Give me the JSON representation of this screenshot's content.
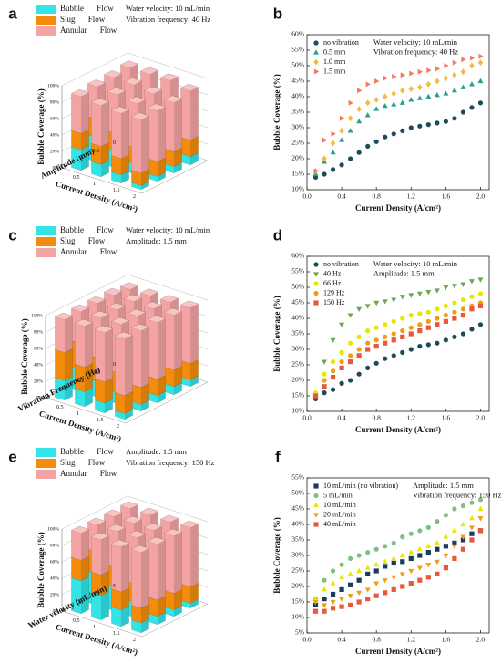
{
  "chart_data": [
    {
      "type": "bar3d",
      "label": "a",
      "annotations": [
        "Water velocity: 10 mL/min",
        "Vibration frequency: 40 Hz"
      ],
      "categories": [
        "0.5",
        "1",
        "1.5",
        "2"
      ],
      "depth_categories": [
        "0",
        "0.5",
        "1",
        "1.5"
      ],
      "xlabel": "Current Density (A/cm²)",
      "depth_label": "Amplitude (mm)",
      "zlabel": "Bubble Coverage (%)",
      "zlim": [
        0,
        100
      ],
      "zticks": [
        {
          "value": 0,
          "label": "0%"
        },
        {
          "value": 20,
          "label": "20%"
        },
        {
          "value": 40,
          "label": "40%"
        },
        {
          "value": 60,
          "label": "60%"
        },
        {
          "value": 80,
          "label": "80%"
        },
        {
          "value": 100,
          "label": "100%"
        }
      ],
      "series": [
        {
          "name": "Bubble Flow",
          "color": "#33e3e6",
          "values": [
            [
              40,
              30,
              20,
              10
            ],
            [
              35,
              25,
              15,
              8
            ],
            [
              30,
              20,
              12,
              6
            ],
            [
              25,
              15,
              10,
              5
            ]
          ]
        },
        {
          "name": "Slug Flow",
          "color": "#f28c0a",
          "values": [
            [
              20,
              20,
              25,
              20
            ],
            [
              20,
              22,
              22,
              18
            ],
            [
              22,
              22,
              20,
              18
            ],
            [
              20,
              22,
              20,
              15
            ]
          ]
        },
        {
          "name": "Annular Flow",
          "color": "#f4a3a3",
          "values": [
            [
              35,
              45,
              50,
              60
            ],
            [
              38,
              45,
              52,
              60
            ],
            [
              40,
              48,
              55,
              62
            ],
            [
              45,
              50,
              55,
              65
            ]
          ]
        }
      ]
    },
    {
      "type": "scatter",
      "label": "b",
      "legend": "upper left",
      "annotations": [
        "Water velocity: 10 mL/min",
        "Vibration frequency: 40 Hz"
      ],
      "xlabel": "Current Density (A/cm²)",
      "ylabel": "Bubble Coverage (%)",
      "x": [
        0.1,
        0.2,
        0.3,
        0.4,
        0.5,
        0.6,
        0.7,
        0.8,
        0.9,
        1.0,
        1.1,
        1.2,
        1.3,
        1.4,
        1.5,
        1.6,
        1.7,
        1.8,
        1.9,
        2.0
      ],
      "xlim": [
        0,
        2.1
      ],
      "xticks": [
        {
          "value": 0,
          "label": "0.0"
        },
        0.4,
        0.8,
        1.2,
        1.6,
        {
          "value": 2,
          "label": "2.0"
        }
      ],
      "ylim": [
        10,
        60
      ],
      "yticks": [
        {
          "value": 10,
          "label": "10%"
        },
        {
          "value": 15,
          "label": "15%"
        },
        {
          "value": 20,
          "label": "20%"
        },
        {
          "value": 25,
          "label": "25%"
        },
        {
          "value": 30,
          "label": "30%"
        },
        {
          "value": 35,
          "label": "35%"
        },
        {
          "value": 40,
          "label": "40%"
        },
        {
          "value": 45,
          "label": "45%"
        },
        {
          "value": 50,
          "label": "50%"
        },
        {
          "value": 55,
          "label": "55%"
        },
        {
          "value": 60,
          "label": "60%"
        }
      ],
      "series": [
        {
          "name": "no vibration",
          "color": "#1d4b5c",
          "marker": "circle",
          "values": [
            14,
            15,
            16.5,
            18,
            20,
            22,
            24,
            25.5,
            27,
            28,
            29,
            30,
            30.5,
            31,
            31.5,
            32,
            33,
            35,
            36.5,
            38
          ]
        },
        {
          "name": "0.5 mm",
          "color": "#2a9d8f",
          "marker": "triangle-up",
          "values": [
            15,
            19,
            22,
            26,
            29,
            32,
            34,
            36,
            37,
            37.5,
            38,
            39,
            39.5,
            40,
            40.5,
            41,
            42,
            43,
            44,
            45
          ]
        },
        {
          "name": "1.0 mm",
          "color": "#f4b942",
          "marker": "diamond",
          "values": [
            16,
            20,
            25,
            29,
            33,
            36,
            38,
            39,
            40,
            41,
            42,
            42.5,
            43,
            44,
            45,
            46,
            47,
            48,
            50,
            51
          ]
        },
        {
          "name": "1.5 mm",
          "color": "#f27a5e",
          "marker": "triangle-right",
          "values": [
            16,
            26,
            28,
            33,
            38,
            42,
            44,
            45,
            46,
            46.5,
            47,
            47.5,
            48,
            48.5,
            49,
            50,
            51,
            52,
            52.5,
            53
          ]
        }
      ]
    },
    {
      "type": "bar3d",
      "label": "c",
      "annotations": [
        "Water velocity: 10 mL/min",
        "Amplitude: 1.5 mm"
      ],
      "categories": [
        "0.5",
        "1",
        "1.5",
        "2"
      ],
      "depth_categories": [
        "0",
        "40",
        "66",
        "129",
        "150"
      ],
      "xlabel": "Current Density (A/cm²)",
      "depth_label": "Vibration Frequency (Hz)",
      "zlabel": "Bubble Coverage (%)",
      "zlim": [
        0,
        100
      ],
      "zticks": [
        {
          "value": 0,
          "label": "0%"
        },
        {
          "value": 20,
          "label": "20%"
        },
        {
          "value": 40,
          "label": "40%"
        },
        {
          "value": 60,
          "label": "60%"
        },
        {
          "value": 80,
          "label": "80%"
        },
        {
          "value": 100,
          "label": "100%"
        }
      ],
      "series": [
        {
          "name": "Bubble Flow",
          "color": "#33e3e6",
          "values": [
            [
              25,
              18,
              12,
              8
            ],
            [
              30,
              22,
              15,
              10
            ],
            [
              28,
              20,
              14,
              9
            ],
            [
              26,
              19,
              13,
              8
            ],
            [
              24,
              18,
              12,
              7
            ]
          ]
        },
        {
          "name": "Slug Flow",
          "color": "#f28c0a",
          "values": [
            [
              35,
              30,
              25,
              20
            ],
            [
              30,
              28,
              24,
              20
            ],
            [
              32,
              28,
              24,
              20
            ],
            [
              33,
              29,
              25,
              21
            ],
            [
              34,
              30,
              26,
              22
            ]
          ]
        },
        {
          "name": "Annular Flow",
          "color": "#f4a3a3",
          "values": [
            [
              35,
              47,
              58,
              68
            ],
            [
              38,
              48,
              58,
              67
            ],
            [
              38,
              50,
              60,
              69
            ],
            [
              39,
              50,
              60,
              69
            ],
            [
              40,
              50,
              60,
              69
            ]
          ]
        }
      ]
    },
    {
      "type": "scatter",
      "label": "d",
      "legend": "upper left",
      "annotations": [
        "Water velocity: 10 mL/min",
        "Amplitude: 1.5 mm"
      ],
      "xlabel": "Current Density (A/cm²)",
      "ylabel": "Bubble Coverage (%)",
      "x": [
        0.1,
        0.2,
        0.3,
        0.4,
        0.5,
        0.6,
        0.7,
        0.8,
        0.9,
        1.0,
        1.1,
        1.2,
        1.3,
        1.4,
        1.5,
        1.6,
        1.7,
        1.8,
        1.9,
        2.0
      ],
      "xlim": [
        0,
        2.1
      ],
      "xticks": [
        {
          "value": 0,
          "label": "0.0"
        },
        0.4,
        0.8,
        1.2,
        1.6,
        {
          "value": 2,
          "label": "2.0"
        }
      ],
      "ylim": [
        10,
        60
      ],
      "yticks": [
        {
          "value": 10,
          "label": "10%"
        },
        {
          "value": 15,
          "label": "15%"
        },
        {
          "value": 20,
          "label": "20%"
        },
        {
          "value": 25,
          "label": "25%"
        },
        {
          "value": 30,
          "label": "30%"
        },
        {
          "value": 35,
          "label": "35%"
        },
        {
          "value": 40,
          "label": "40%"
        },
        {
          "value": 45,
          "label": "45%"
        },
        {
          "value": 50,
          "label": "50%"
        },
        {
          "value": 55,
          "label": "55%"
        },
        {
          "value": 60,
          "label": "60%"
        }
      ],
      "series": [
        {
          "name": "no vibration",
          "color": "#1d4b5c",
          "marker": "circle",
          "values": [
            14,
            16,
            17,
            19,
            20,
            22,
            24,
            25.5,
            27,
            28,
            29,
            30,
            31,
            31.5,
            32,
            33,
            34,
            35,
            36.5,
            38
          ]
        },
        {
          "name": "40 Hz",
          "color": "#6aa84f",
          "marker": "triangle-down",
          "values": [
            15,
            26,
            33,
            38,
            41,
            43,
            44,
            45,
            45.5,
            46,
            47,
            47.5,
            48,
            48.5,
            49,
            50,
            50.5,
            51,
            52,
            52.5
          ]
        },
        {
          "name": "66 Hz",
          "color": "#e6e600",
          "marker": "circle",
          "values": [
            16,
            22,
            26,
            29,
            32,
            34,
            36,
            37,
            38,
            39,
            40,
            41,
            41.5,
            42,
            43,
            44,
            45,
            46,
            47,
            48
          ]
        },
        {
          "name": "129 Hz",
          "color": "#f39c12",
          "marker": "circle",
          "values": [
            15,
            20,
            23,
            26,
            28,
            30,
            32,
            33,
            34,
            35,
            36,
            37,
            38,
            39,
            40,
            41,
            42,
            43,
            44,
            45
          ]
        },
        {
          "name": "150 Hz",
          "color": "#e8593c",
          "marker": "square",
          "values": [
            15,
            18,
            21,
            24,
            26,
            28,
            30,
            31,
            32,
            33,
            34,
            35,
            36,
            37,
            38,
            39,
            40,
            41,
            43,
            44
          ]
        }
      ]
    },
    {
      "type": "bar3d",
      "label": "e",
      "annotations": [
        "Amplitude: 1.5 mm",
        "Vibration frequency: 150 Hz"
      ],
      "categories": [
        "0.5",
        "1",
        "1.5",
        "2"
      ],
      "depth_categories": [
        "5",
        "10",
        "20",
        "40"
      ],
      "xlabel": "Current Density (A/cm²)",
      "depth_label": "Water velocity (mL/min)",
      "zlabel": "Bubble Coverage (%)",
      "zlim": [
        0,
        100
      ],
      "zticks": [
        {
          "value": 0,
          "label": "0%"
        },
        {
          "value": 20,
          "label": "20%"
        },
        {
          "value": 40,
          "label": "40%"
        },
        {
          "value": 60,
          "label": "60%"
        },
        {
          "value": 80,
          "label": "80%"
        },
        {
          "value": 100,
          "label": "100%"
        }
      ],
      "series": [
        {
          "name": "Bubble Flow",
          "color": "#33e3e6",
          "values": [
            [
              30,
              20,
              12,
              6
            ],
            [
              35,
              25,
              15,
              8
            ],
            [
              38,
              28,
              18,
              10
            ],
            [
              40,
              30,
              20,
              12
            ]
          ]
        },
        {
          "name": "Slug Flow",
          "color": "#f28c0a",
          "values": [
            [
              30,
              28,
              25,
              20
            ],
            [
              28,
              26,
              24,
              20
            ],
            [
              27,
              25,
              23,
              20
            ],
            [
              25,
              25,
              22,
              18
            ]
          ]
        },
        {
          "name": "Annular Flow",
          "color": "#f4a3a3",
          "values": [
            [
              38,
              50,
              60,
              72
            ],
            [
              35,
              47,
              58,
              70
            ],
            [
              33,
              45,
              57,
              68
            ],
            [
              33,
              43,
              55,
              68
            ]
          ]
        }
      ]
    },
    {
      "type": "scatter",
      "label": "f",
      "legend": "upper left",
      "annotations": [
        "Amplitude: 1.5 mm",
        "Vibration frequency: 150 Hz"
      ],
      "xlabel": "Current Density (A/cm²)",
      "ylabel": "Bubble Coverage (%)",
      "x": [
        0.1,
        0.2,
        0.3,
        0.4,
        0.5,
        0.6,
        0.7,
        0.8,
        0.9,
        1.0,
        1.1,
        1.2,
        1.3,
        1.4,
        1.5,
        1.6,
        1.7,
        1.8,
        1.9,
        2.0
      ],
      "xlim": [
        0,
        2.1
      ],
      "xticks": [
        {
          "value": 0,
          "label": "0.0"
        },
        0.4,
        0.8,
        1.2,
        1.6,
        {
          "value": 2,
          "label": "2.0"
        }
      ],
      "ylim": [
        5,
        55
      ],
      "yticks": [
        {
          "value": 5,
          "label": "5%"
        },
        {
          "value": 10,
          "label": "10%"
        },
        {
          "value": 15,
          "label": "15%"
        },
        {
          "value": 20,
          "label": "20%"
        },
        {
          "value": 25,
          "label": "25%"
        },
        {
          "value": 30,
          "label": "30%"
        },
        {
          "value": 35,
          "label": "35%"
        },
        {
          "value": 40,
          "label": "40%"
        },
        {
          "value": 45,
          "label": "45%"
        },
        {
          "value": 50,
          "label": "50%"
        },
        {
          "value": 55,
          "label": "55%"
        }
      ],
      "series": [
        {
          "name": "10 mL/min (no vibration)",
          "color": "#1a3c5a",
          "marker": "square",
          "values": [
            14,
            16,
            17.5,
            19,
            20.5,
            22,
            24,
            25,
            26.5,
            27.5,
            28,
            29,
            30,
            31,
            32,
            33,
            34,
            35,
            37,
            38
          ]
        },
        {
          "name": "5 mL/min",
          "color": "#7fbf7f",
          "marker": "circle",
          "values": [
            16,
            22,
            25,
            27,
            29,
            30,
            31,
            32,
            33,
            34,
            36,
            37,
            38,
            39,
            41,
            43,
            45,
            46,
            47,
            48
          ]
        },
        {
          "name": "10 mL/min",
          "color": "#e6e600",
          "marker": "triangle-up",
          "values": [
            16,
            19,
            21,
            23,
            24,
            25,
            26,
            27,
            28,
            29,
            30,
            31,
            32,
            33,
            34,
            36,
            38,
            40,
            42,
            45
          ]
        },
        {
          "name": "20 mL/min",
          "color": "#f39c12",
          "marker": "triangle-down",
          "values": [
            15,
            14,
            15,
            16,
            17,
            18,
            19,
            21,
            22,
            23,
            24,
            25,
            26,
            27,
            28,
            30,
            33,
            36,
            39,
            42
          ]
        },
        {
          "name": "40 mL/min",
          "color": "#e8593c",
          "marker": "square",
          "values": [
            12,
            12,
            13,
            13.5,
            14,
            15,
            16,
            17,
            18,
            19,
            20,
            21,
            22,
            23,
            24,
            26,
            29,
            32,
            35,
            38
          ]
        }
      ]
    }
  ]
}
